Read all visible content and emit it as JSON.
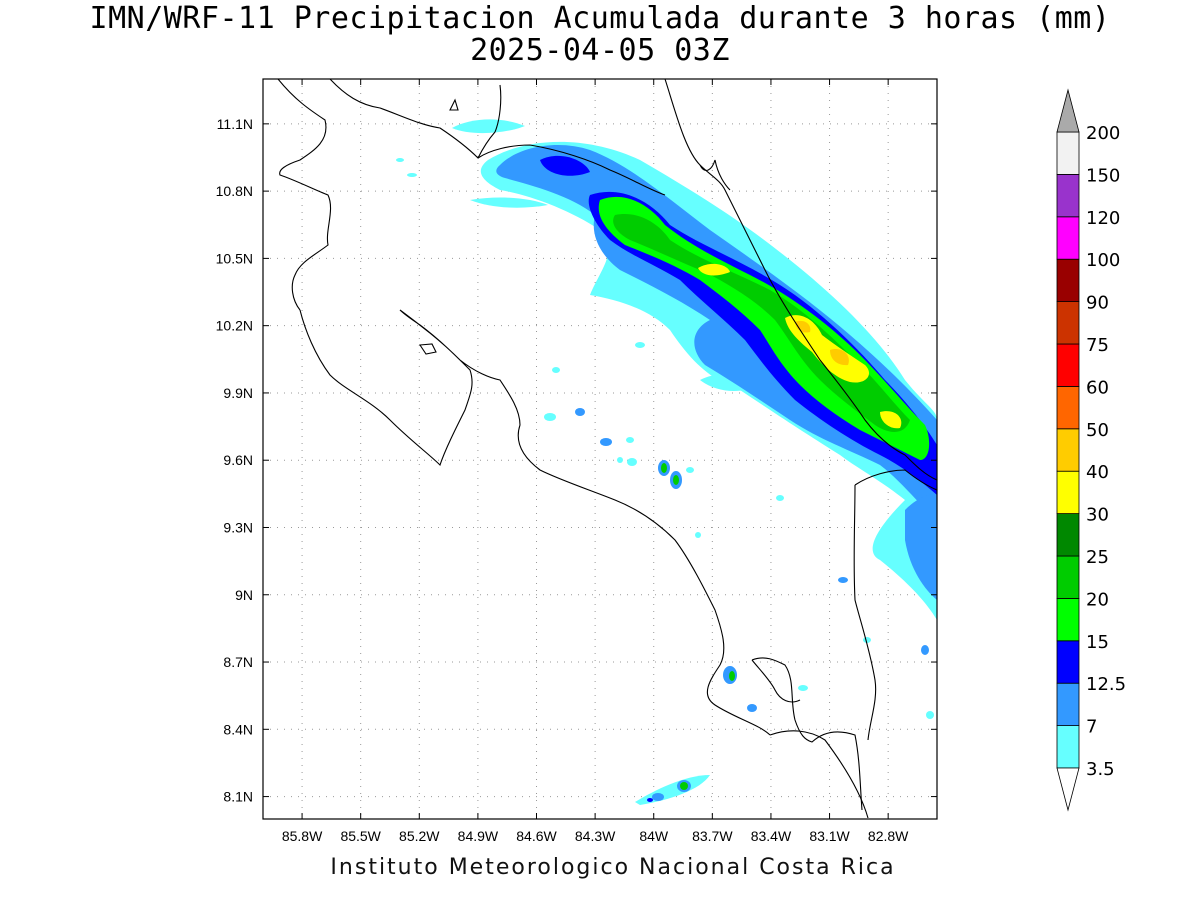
{
  "title": {
    "line1": "IMN/WRF-11 Precipitacion Acumulada durante 3 horas (mm)",
    "line2": "2025-04-05 03Z"
  },
  "footer": "Instituto Meteorologico Nacional Costa Rica",
  "map": {
    "lon_range": [
      -86.0,
      -82.55
    ],
    "lat_range": [
      8.0,
      11.3
    ],
    "lon_ticks": [
      {
        "value": -85.8,
        "label": "85.8W"
      },
      {
        "value": -85.5,
        "label": "85.5W"
      },
      {
        "value": -85.2,
        "label": "85.2W"
      },
      {
        "value": -84.9,
        "label": "84.9W"
      },
      {
        "value": -84.6,
        "label": "84.6W"
      },
      {
        "value": -84.3,
        "label": "84.3W"
      },
      {
        "value": -84.0,
        "label": "84W"
      },
      {
        "value": -83.7,
        "label": "83.7W"
      },
      {
        "value": -83.4,
        "label": "83.4W"
      },
      {
        "value": -83.1,
        "label": "83.1W"
      },
      {
        "value": -82.8,
        "label": "82.8W"
      }
    ],
    "lat_ticks": [
      {
        "value": 11.1,
        "label": "11.1N"
      },
      {
        "value": 10.8,
        "label": "10.8N"
      },
      {
        "value": 10.5,
        "label": "10.5N"
      },
      {
        "value": 10.2,
        "label": "10.2N"
      },
      {
        "value": 9.9,
        "label": "9.9N"
      },
      {
        "value": 9.6,
        "label": "9.6N"
      },
      {
        "value": 9.3,
        "label": "9.3N"
      },
      {
        "value": 9.0,
        "label": "9N"
      },
      {
        "value": 8.7,
        "label": "8.7N"
      },
      {
        "value": 8.4,
        "label": "8.4N"
      },
      {
        "value": 8.1,
        "label": "8.1N"
      }
    ],
    "grid": true
  },
  "colorbar": {
    "levels": [
      {
        "label": "3.5",
        "color": "#66ffff"
      },
      {
        "label": "7",
        "color": "#3399ff"
      },
      {
        "label": "12.5",
        "color": "#0000ff"
      },
      {
        "label": "15",
        "color": "#00ff00"
      },
      {
        "label": "20",
        "color": "#00cc00"
      },
      {
        "label": "25",
        "color": "#008800"
      },
      {
        "label": "30",
        "color": "#ffff00"
      },
      {
        "label": "40",
        "color": "#ffcc00"
      },
      {
        "label": "50",
        "color": "#ff6600"
      },
      {
        "label": "60",
        "color": "#ff0000"
      },
      {
        "label": "75",
        "color": "#cc3300"
      },
      {
        "label": "90",
        "color": "#990000"
      },
      {
        "label": "100",
        "color": "#ff00ff"
      },
      {
        "label": "120",
        "color": "#9933cc"
      },
      {
        "label": "150",
        "color": "#f2f2f2"
      },
      {
        "label": "200",
        "color": "#aaaaaa"
      }
    ],
    "low_triangle_color": "#ffffff",
    "high_triangle_color": "#aaaaaa"
  },
  "precip_colors": {
    "c1": "#66ffff",
    "c2": "#3399ff",
    "c3": "#0000ff",
    "c4": "#00ff00",
    "c5": "#00cc00",
    "c6": "#ffff00",
    "c7": "#ffcc00"
  }
}
